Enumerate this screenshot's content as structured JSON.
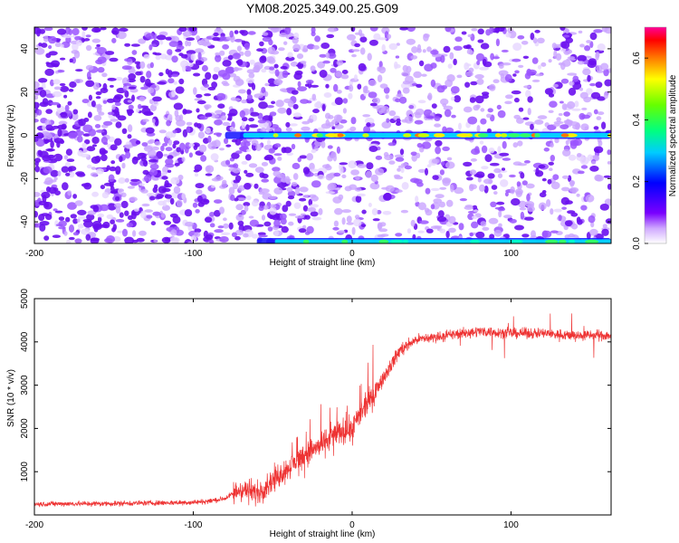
{
  "title": "YM08.2025.349.00.25.G09",
  "chart_data": [
    {
      "type": "heatmap",
      "title": "YM08.2025.349.00.25.G09",
      "xlabel": "Height of straight line (km)",
      "ylabel": "Frequency (Hz)",
      "xlim": [
        -200,
        163
      ],
      "ylim": [
        -50,
        50
      ],
      "xticks": [
        -200,
        -100,
        0,
        100
      ],
      "yticks": [
        -40,
        -20,
        0,
        20,
        40
      ],
      "colorbar": {
        "label": "Normalized spectral amplitude",
        "range": [
          0,
          0.7
        ],
        "ticks": [
          0.0,
          0.2,
          0.4,
          0.6
        ],
        "colormap": "rainbow (white-violet-blue-cyan-green-yellow-red-magenta)"
      },
      "features": [
        {
          "name": "carrier line",
          "frequency_hz": 0,
          "x_range": [
            -80,
            163
          ],
          "peak_amplitude": 0.6
        },
        {
          "name": "aliased line",
          "frequency_hz": -50,
          "x_range": [
            -60,
            163
          ],
          "peak_amplitude": 0.3
        }
      ]
    },
    {
      "type": "line",
      "xlabel": "Height of straight line (km)",
      "ylabel": "SNR (10 * v/v)",
      "xlim": [
        -200,
        163
      ],
      "ylim": [
        0,
        5000
      ],
      "xticks": [
        -200,
        -100,
        0,
        100
      ],
      "yticks": [
        1000,
        2000,
        3000,
        4000,
        5000
      ],
      "color": "#ee3333",
      "series": [
        {
          "name": "SNR",
          "x": [
            -200,
            -180,
            -160,
            -140,
            -120,
            -100,
            -90,
            -80,
            -70,
            -60,
            -50,
            -40,
            -30,
            -20,
            -10,
            0,
            10,
            20,
            30,
            40,
            60,
            80,
            100,
            120,
            140,
            163
          ],
          "y": [
            250,
            260,
            260,
            270,
            280,
            290,
            320,
            380,
            600,
            500,
            800,
            1100,
            1400,
            1600,
            1900,
            2000,
            2600,
            3200,
            3800,
            4050,
            4150,
            4250,
            4200,
            4200,
            4150,
            4150
          ]
        }
      ]
    }
  ]
}
